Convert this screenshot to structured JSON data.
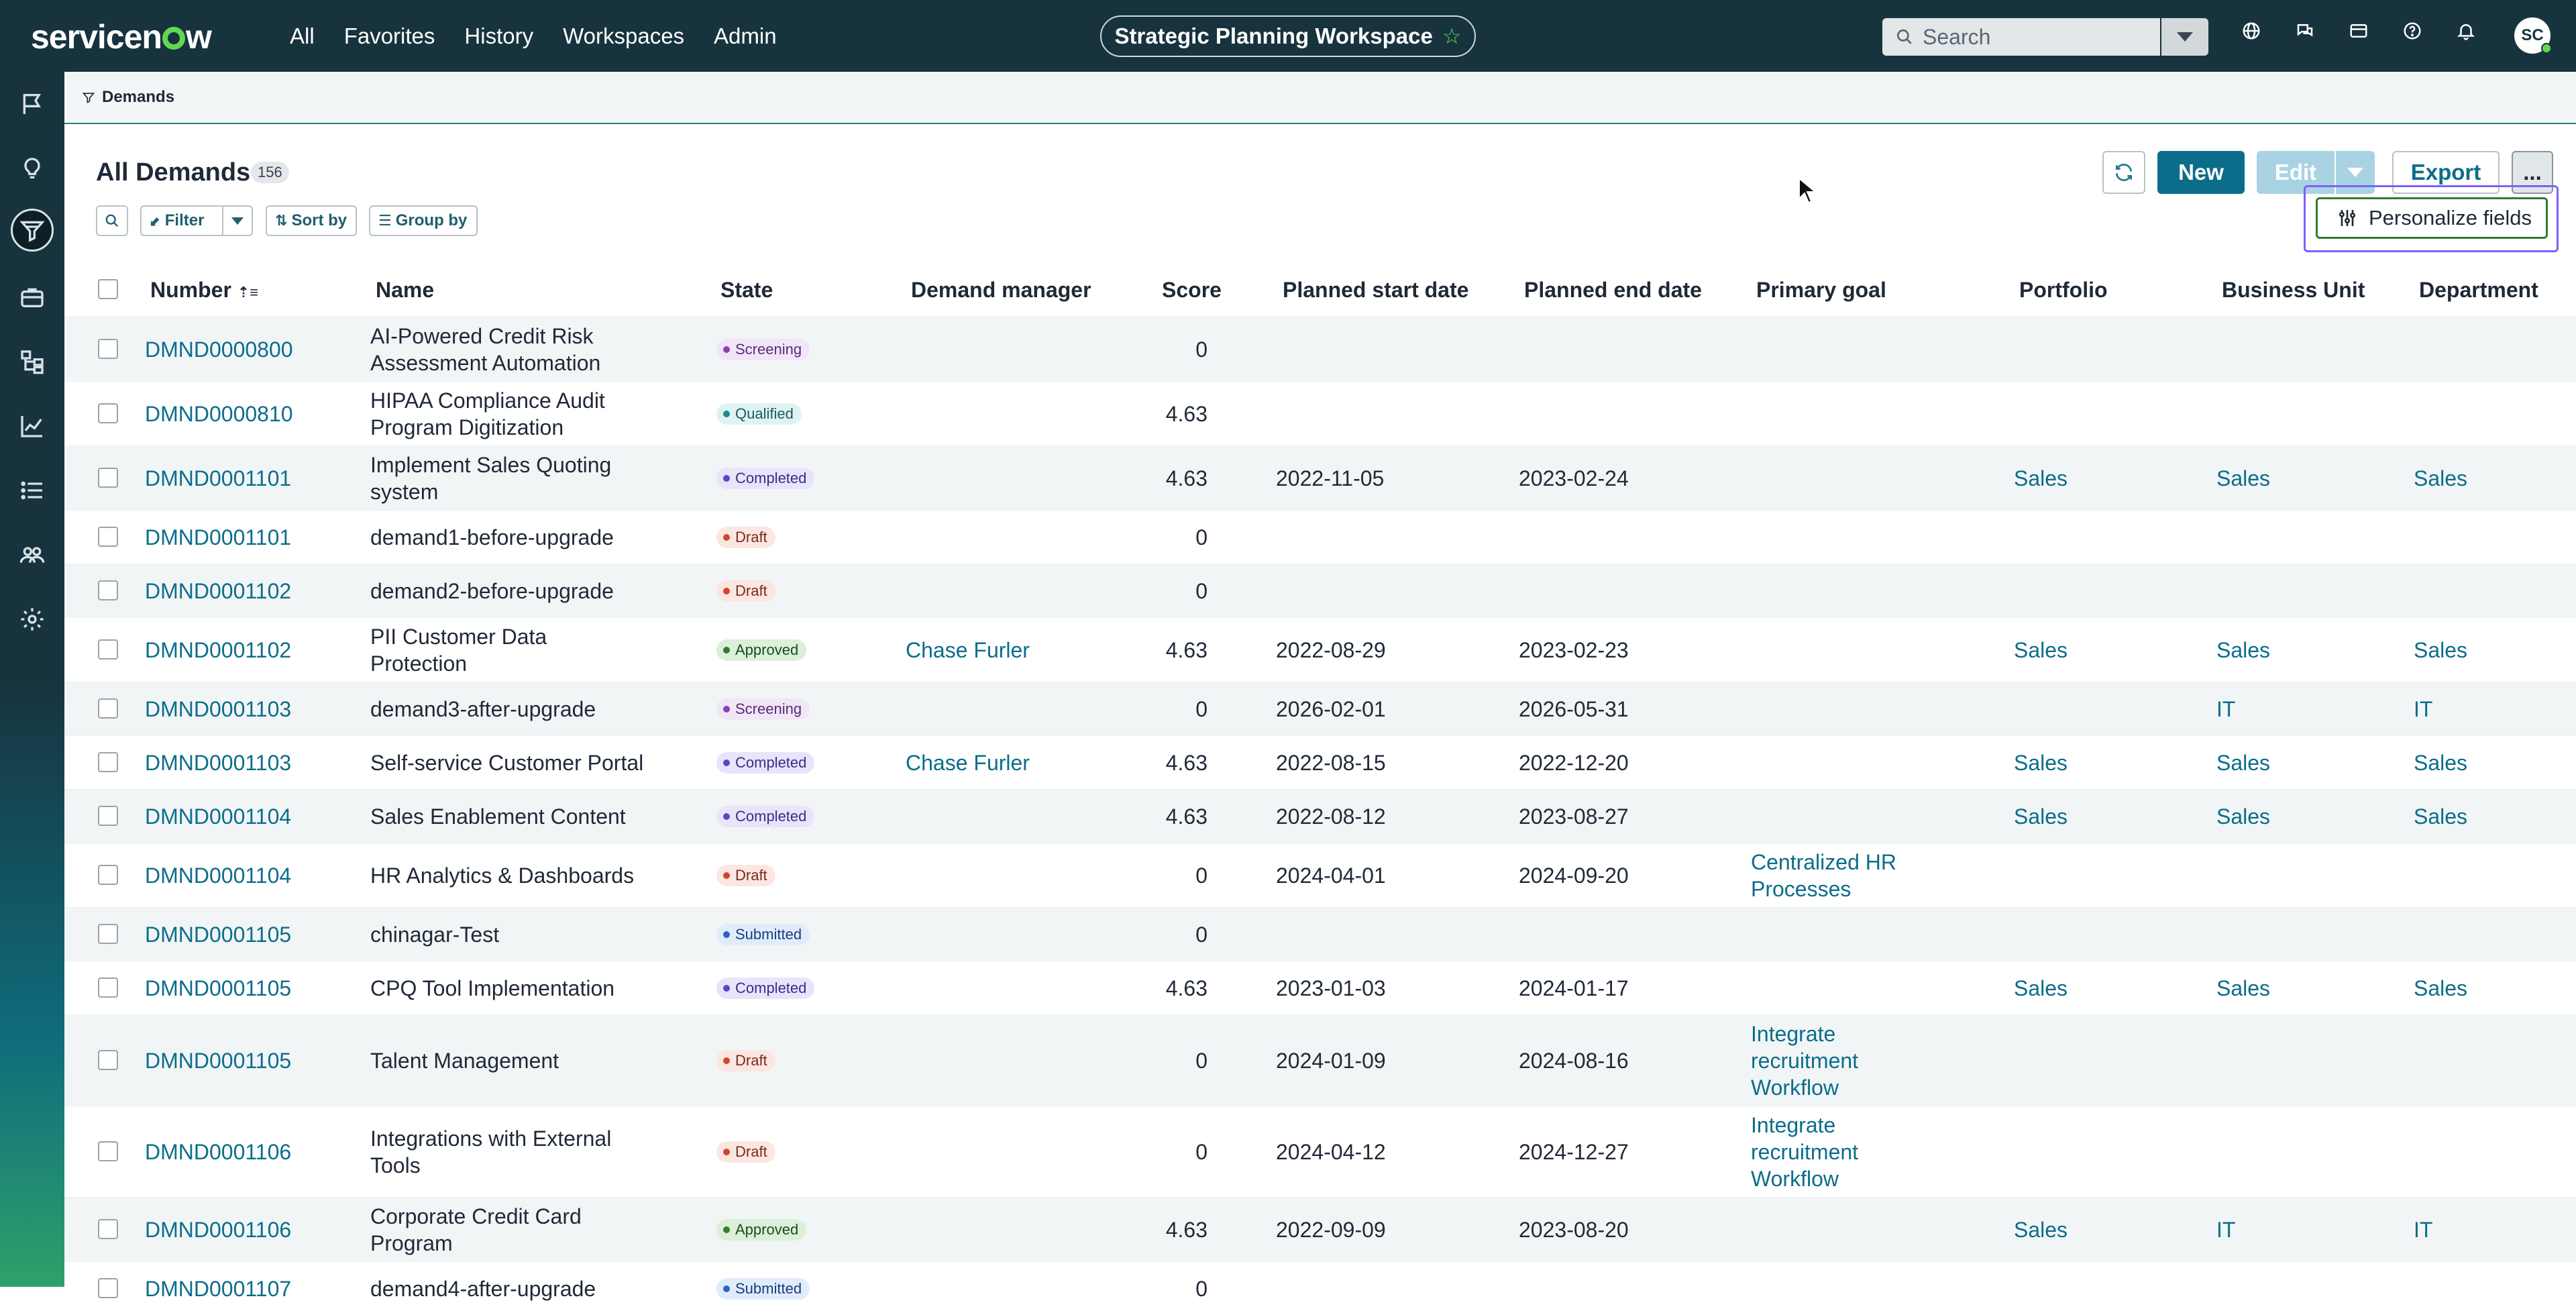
{
  "topnav": {
    "logo": "servicenow",
    "items": [
      "All",
      "Favorites",
      "History",
      "Workspaces",
      "Admin"
    ],
    "workspace": "Strategic Planning Workspace",
    "search_placeholder": "Search",
    "avatar_initials": "SC"
  },
  "breadcrumb": {
    "label": "Demands"
  },
  "list": {
    "title": "All Demands",
    "count": "156",
    "filter_label": "Filter",
    "sort_label": "Sort by",
    "group_label": "Group by"
  },
  "actions": {
    "new_label": "New",
    "edit_label": "Edit",
    "export_label": "Export",
    "more_label": "...",
    "personalize_label": "Personalize fields"
  },
  "columns": [
    "Number",
    "Name",
    "State",
    "Demand manager",
    "Score",
    "Planned start date",
    "Planned end date",
    "Primary goal",
    "Portfolio",
    "Business Unit",
    "Department"
  ],
  "rows": [
    {
      "number": "DMND0000800",
      "name": [
        "AI-Powered Credit Risk",
        "Assessment Automation"
      ],
      "state": "Screening",
      "manager": "",
      "score": "0",
      "start": "",
      "end": "",
      "goal": [],
      "portfolio": "",
      "bu": "",
      "dept": ""
    },
    {
      "number": "DMND0000810",
      "name": [
        "HIPAA Compliance Audit",
        "Program Digitization"
      ],
      "state": "Qualified",
      "manager": "",
      "score": "4.63",
      "start": "",
      "end": "",
      "goal": [],
      "portfolio": "",
      "bu": "",
      "dept": ""
    },
    {
      "number": "DMND0001101",
      "name": [
        "Implement Sales Quoting",
        "system"
      ],
      "state": "Completed",
      "manager": "",
      "score": "4.63",
      "start": "2022-11-05",
      "end": "2023-02-24",
      "goal": [],
      "portfolio": "Sales",
      "bu": "Sales",
      "dept": "Sales"
    },
    {
      "number": "DMND0001101",
      "name": [
        "demand1-before-upgrade"
      ],
      "state": "Draft",
      "manager": "",
      "score": "0",
      "start": "",
      "end": "",
      "goal": [],
      "portfolio": "",
      "bu": "",
      "dept": ""
    },
    {
      "number": "DMND0001102",
      "name": [
        "demand2-before-upgrade"
      ],
      "state": "Draft",
      "manager": "",
      "score": "0",
      "start": "",
      "end": "",
      "goal": [],
      "portfolio": "",
      "bu": "",
      "dept": ""
    },
    {
      "number": "DMND0001102",
      "name": [
        "PII Customer Data",
        "Protection"
      ],
      "state": "Approved",
      "manager": "Chase Furler",
      "score": "4.63",
      "start": "2022-08-29",
      "end": "2023-02-23",
      "goal": [],
      "portfolio": "Sales",
      "bu": "Sales",
      "dept": "Sales"
    },
    {
      "number": "DMND0001103",
      "name": [
        "demand3-after-upgrade"
      ],
      "state": "Screening",
      "manager": "",
      "score": "0",
      "start": "2026-02-01",
      "end": "2026-05-31",
      "goal": [],
      "portfolio": "",
      "bu": "IT",
      "dept": "IT"
    },
    {
      "number": "DMND0001103",
      "name": [
        "Self-service Customer Portal"
      ],
      "state": "Completed",
      "manager": "Chase Furler",
      "score": "4.63",
      "start": "2022-08-15",
      "end": "2022-12-20",
      "goal": [],
      "portfolio": "Sales",
      "bu": "Sales",
      "dept": "Sales"
    },
    {
      "number": "DMND0001104",
      "name": [
        "Sales Enablement Content"
      ],
      "state": "Completed",
      "manager": "",
      "score": "4.63",
      "start": "2022-08-12",
      "end": "2023-08-27",
      "goal": [],
      "portfolio": "Sales",
      "bu": "Sales",
      "dept": "Sales"
    },
    {
      "number": "DMND0001104",
      "name": [
        "HR Analytics & Dashboards"
      ],
      "state": "Draft",
      "manager": "",
      "score": "0",
      "start": "2024-04-01",
      "end": "2024-09-20",
      "goal": [
        "Centralized HR",
        "Processes"
      ],
      "portfolio": "",
      "bu": "",
      "dept": ""
    },
    {
      "number": "DMND0001105",
      "name": [
        "chinagar-Test"
      ],
      "state": "Submitted",
      "manager": "",
      "score": "0",
      "start": "",
      "end": "",
      "goal": [],
      "portfolio": "",
      "bu": "",
      "dept": ""
    },
    {
      "number": "DMND0001105",
      "name": [
        "CPQ Tool Implementation"
      ],
      "state": "Completed",
      "manager": "",
      "score": "4.63",
      "start": "2023-01-03",
      "end": "2024-01-17",
      "goal": [],
      "portfolio": "Sales",
      "bu": "Sales",
      "dept": "Sales"
    },
    {
      "number": "DMND0001105",
      "name": [
        "Talent Management"
      ],
      "state": "Draft",
      "manager": "",
      "score": "0",
      "start": "2024-01-09",
      "end": "2024-08-16",
      "goal": [
        "Integrate",
        "recruitment",
        "Workflow"
      ],
      "portfolio": "",
      "bu": "",
      "dept": ""
    },
    {
      "number": "DMND0001106",
      "name": [
        "Integrations with External",
        "Tools"
      ],
      "state": "Draft",
      "manager": "",
      "score": "0",
      "start": "2024-04-12",
      "end": "2024-12-27",
      "goal": [
        "Integrate",
        "recruitment",
        "Workflow"
      ],
      "portfolio": "",
      "bu": "",
      "dept": ""
    },
    {
      "number": "DMND0001106",
      "name": [
        "Corporate Credit Card",
        "Program"
      ],
      "state": "Approved",
      "manager": "",
      "score": "4.63",
      "start": "2022-09-09",
      "end": "2023-08-20",
      "goal": [],
      "portfolio": "Sales",
      "bu": "IT",
      "dept": "IT"
    },
    {
      "number": "DMND0001107",
      "name": [
        "demand4-after-upgrade"
      ],
      "state": "Submitted",
      "manager": "",
      "score": "0",
      "start": "",
      "end": "",
      "goal": [],
      "portfolio": "",
      "bu": "",
      "dept": ""
    }
  ]
}
